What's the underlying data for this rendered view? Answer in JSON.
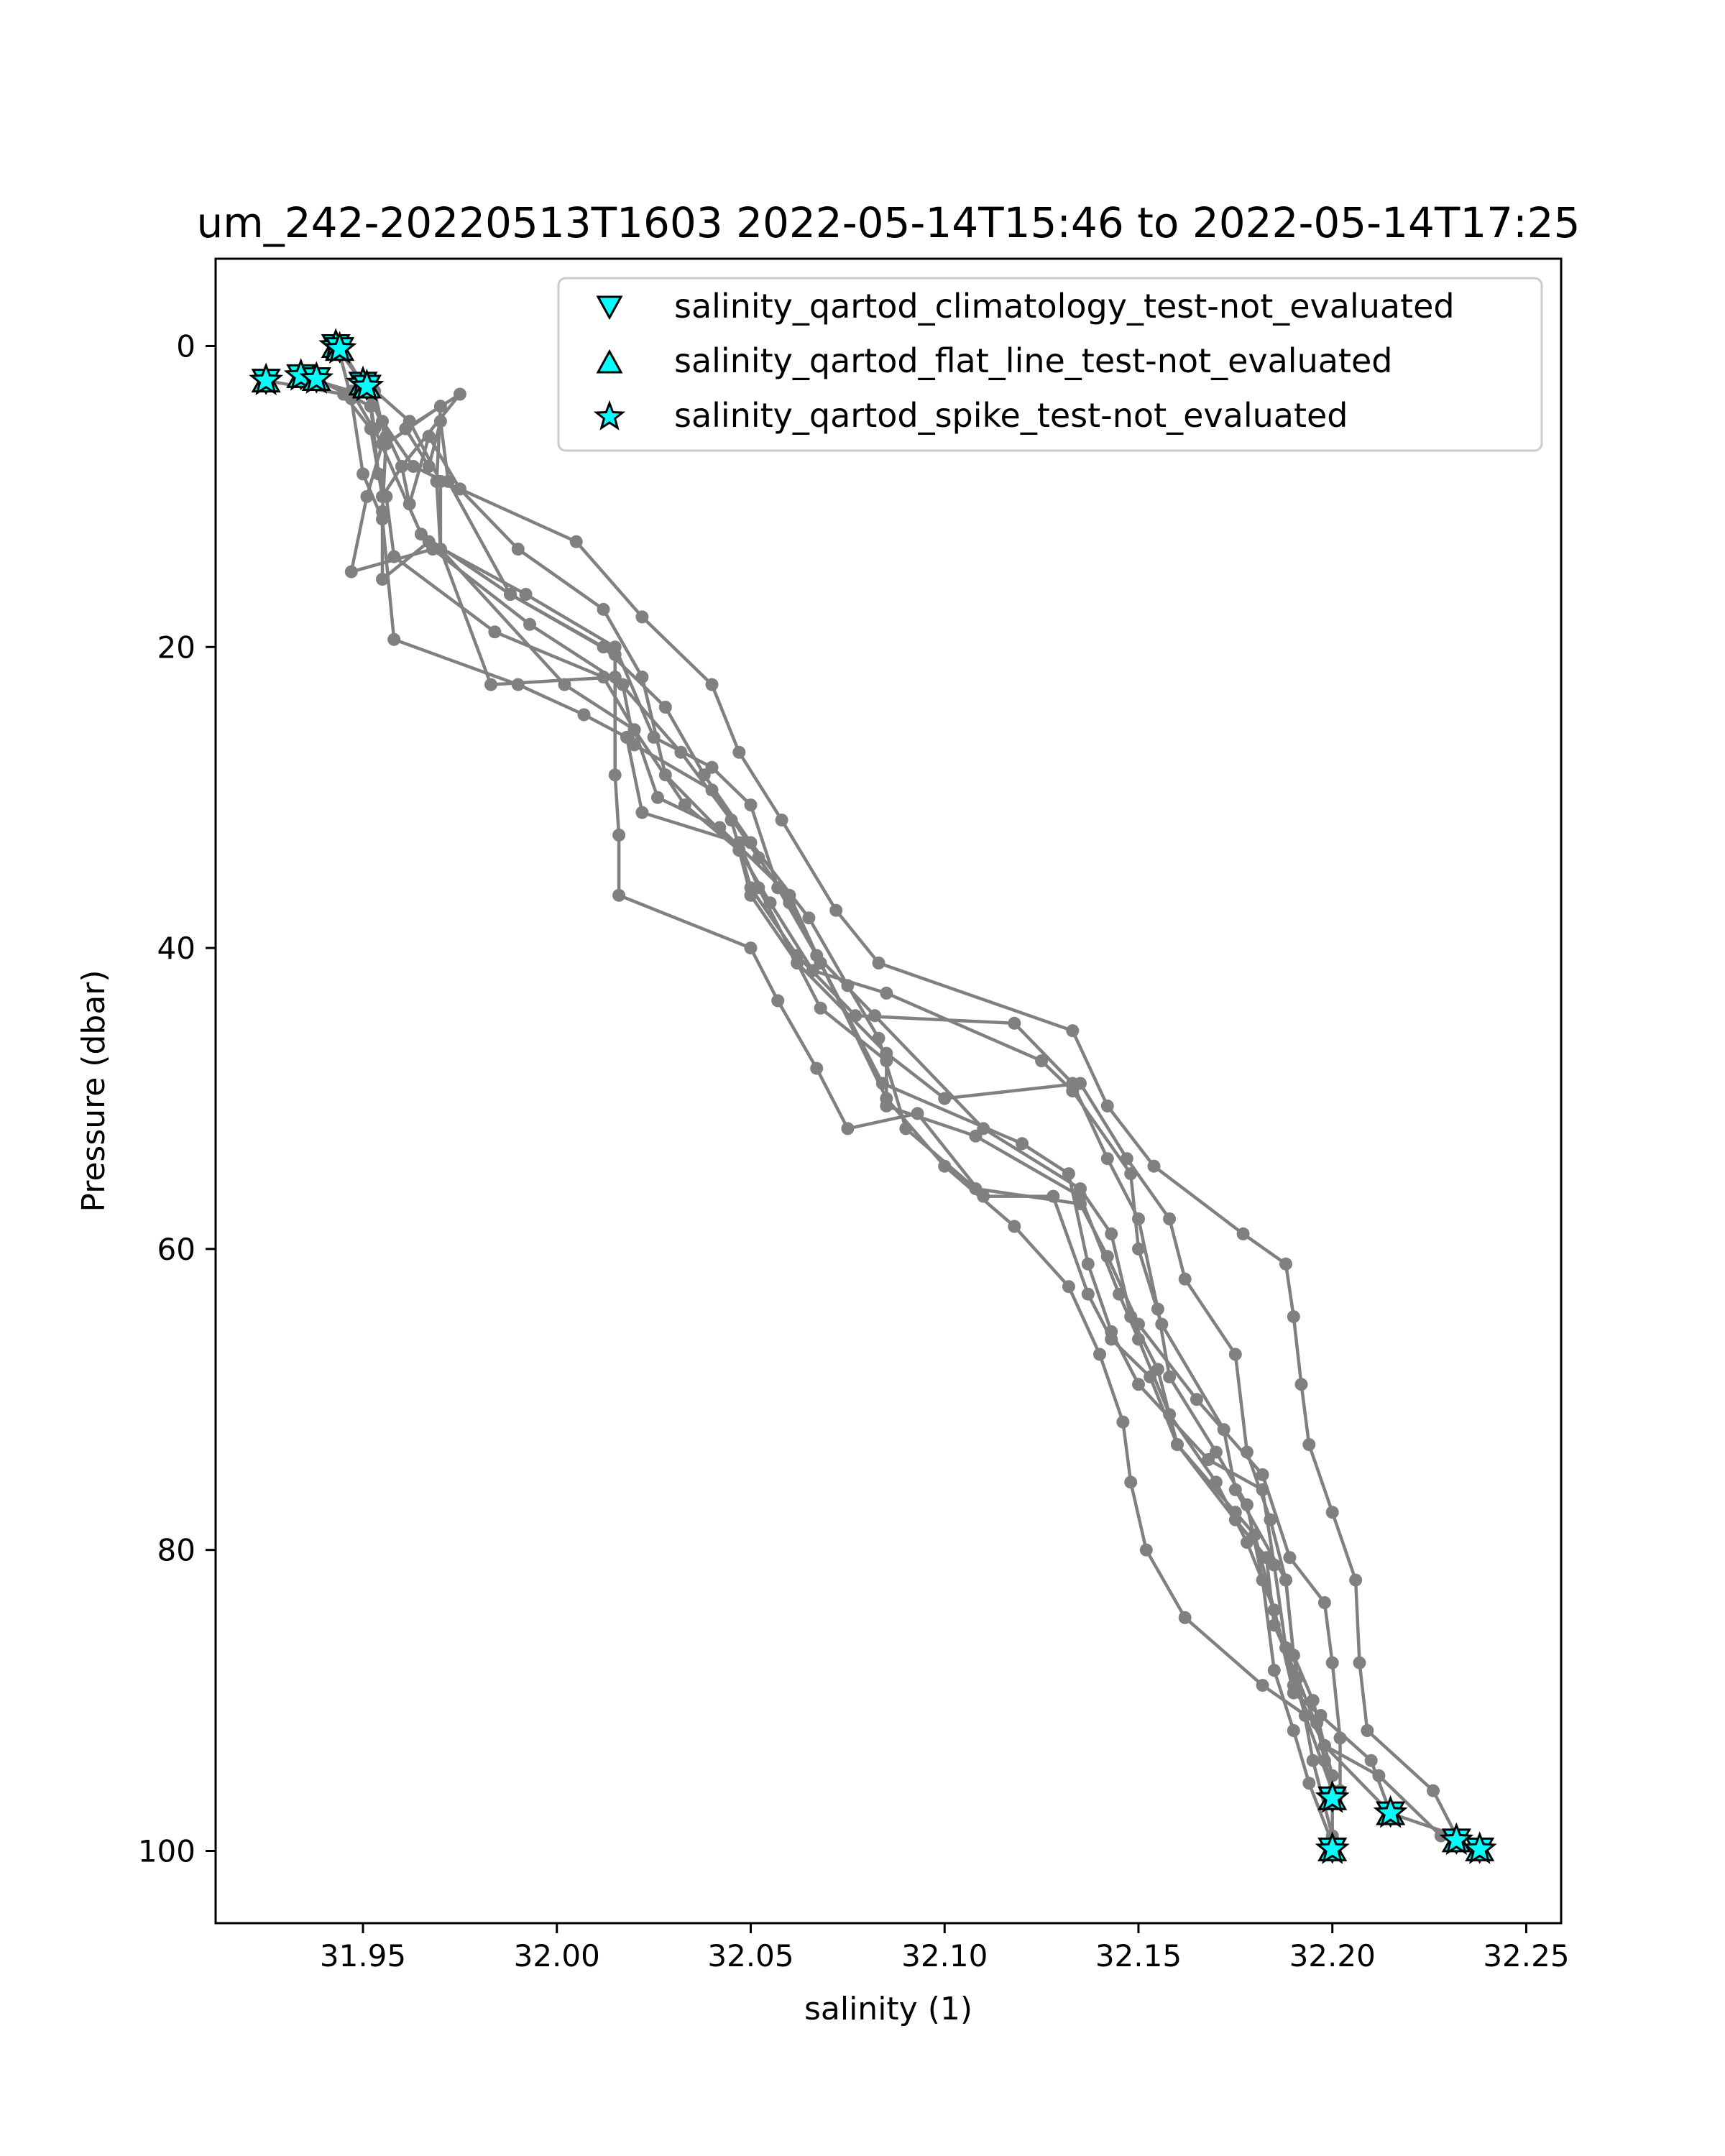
{
  "chart_data": {
    "type": "line",
    "title": "um_242-20220513T1603 2022-05-14T15:46 to 2022-05-14T17:25",
    "xlabel": "salinity (1)",
    "ylabel": "Pressure (dbar)",
    "xlim": [
      31.912,
      32.259
    ],
    "ylim": [
      104.8,
      -5.8
    ],
    "y_inverted": true,
    "grid": false,
    "x_ticks": [
      31.95,
      32.0,
      32.05,
      32.1,
      32.15,
      32.2,
      32.25
    ],
    "x_tick_labels": [
      "31.95",
      "32.00",
      "32.05",
      "32.10",
      "32.15",
      "32.20",
      "32.25"
    ],
    "y_ticks": [
      0,
      20,
      40,
      60,
      80,
      100
    ],
    "y_tick_labels": [
      "0",
      "20",
      "40",
      "60",
      "80",
      "100"
    ],
    "legend_position": "top-right",
    "line_color": "#808080",
    "flag_color": "#00ffff",
    "legend": [
      {
        "label": "salinity_qartod_climatology_test-not_evaluated",
        "marker": "triangle-down"
      },
      {
        "label": "salinity_qartod_flat_line_test-not_evaluated",
        "marker": "triangle-up"
      },
      {
        "label": "salinity_qartod_spike_test-not_evaluated",
        "marker": "star"
      }
    ],
    "series": [
      {
        "points": [
          [
            31.943,
            0.0
          ],
          [
            31.95,
            2.5
          ],
          [
            31.955,
            5.0
          ],
          [
            31.963,
            8.0
          ],
          [
            31.975,
            9.5
          ],
          [
            32.005,
            13.0
          ],
          [
            32.022,
            18.0
          ],
          [
            32.04,
            22.5
          ],
          [
            32.047,
            27.0
          ],
          [
            32.058,
            31.5
          ],
          [
            32.072,
            37.5
          ],
          [
            32.083,
            41.0
          ],
          [
            32.133,
            45.5
          ],
          [
            32.142,
            50.5
          ],
          [
            32.154,
            54.5
          ],
          [
            32.177,
            59.0
          ],
          [
            32.188,
            61.0
          ],
          [
            32.19,
            64.5
          ],
          [
            32.192,
            69.0
          ],
          [
            32.194,
            73.0
          ],
          [
            32.2,
            77.5
          ],
          [
            32.206,
            82.0
          ],
          [
            32.207,
            87.5
          ],
          [
            32.209,
            92.0
          ],
          [
            32.226,
            96.0
          ],
          [
            32.232,
            99.0
          ]
        ]
      },
      {
        "points": [
          [
            31.951,
            2.5
          ],
          [
            31.953,
            5.5
          ],
          [
            31.965,
            12.5
          ],
          [
            31.988,
            16.5
          ],
          [
            32.012,
            20.0
          ],
          [
            32.028,
            24.0
          ],
          [
            32.038,
            28.5
          ],
          [
            32.05,
            33.0
          ],
          [
            32.065,
            38.0
          ],
          [
            32.075,
            42.5
          ],
          [
            32.083,
            46.0
          ],
          [
            32.09,
            52.0
          ],
          [
            32.108,
            56.0
          ],
          [
            32.135,
            57.0
          ],
          [
            32.142,
            60.5
          ],
          [
            32.15,
            65.0
          ],
          [
            32.165,
            70.0
          ],
          [
            32.182,
            75.0
          ],
          [
            32.189,
            80.5
          ],
          [
            32.198,
            83.5
          ],
          [
            32.2,
            87.5
          ],
          [
            32.202,
            92.5
          ],
          [
            32.202,
            96.0
          ]
        ]
      },
      {
        "points": [
          [
            31.938,
            2.2
          ],
          [
            31.952,
            4.0
          ],
          [
            31.954,
            8.5
          ],
          [
            31.956,
            10.0
          ],
          [
            31.958,
            14.0
          ],
          [
            31.984,
            19.0
          ],
          [
            32.012,
            22.0
          ],
          [
            32.02,
            25.5
          ],
          [
            32.026,
            30.0
          ],
          [
            32.042,
            32.0
          ],
          [
            32.06,
            36.5
          ],
          [
            32.068,
            41.0
          ],
          [
            32.085,
            50.0
          ],
          [
            32.1,
            54.5
          ],
          [
            32.118,
            58.5
          ],
          [
            32.132,
            62.5
          ],
          [
            32.14,
            67.0
          ],
          [
            32.146,
            71.5
          ],
          [
            32.148,
            75.5
          ],
          [
            32.152,
            80.0
          ],
          [
            32.162,
            84.5
          ],
          [
            32.182,
            89.0
          ],
          [
            32.196,
            91.5
          ],
          [
            32.198,
            94.0
          ],
          [
            32.201,
            96.5
          ]
        ]
      },
      {
        "points": [
          [
            31.934,
            2.0
          ],
          [
            31.947,
            3.0
          ],
          [
            31.955,
            6.5
          ],
          [
            31.951,
            10.0
          ],
          [
            31.947,
            15.0
          ],
          [
            31.968,
            13.5
          ],
          [
            31.993,
            18.5
          ],
          [
            32.017,
            22.5
          ],
          [
            32.02,
            26.5
          ],
          [
            32.04,
            29.5
          ],
          [
            32.052,
            34.0
          ],
          [
            32.06,
            37.0
          ],
          [
            32.068,
            41.0
          ],
          [
            32.084,
            49.0
          ],
          [
            32.12,
            53.0
          ],
          [
            32.132,
            55.0
          ],
          [
            32.137,
            61.0
          ],
          [
            32.143,
            65.5
          ],
          [
            32.15,
            69.0
          ],
          [
            32.168,
            74.0
          ],
          [
            32.182,
            76.0
          ],
          [
            32.185,
            81.0
          ],
          [
            32.188,
            86.5
          ],
          [
            32.193,
            91.0
          ],
          [
            32.2,
            96.0
          ],
          [
            32.2,
            100.0
          ]
        ]
      },
      {
        "points": [
          [
            31.951,
            2.5
          ],
          [
            31.956,
            6.0
          ],
          [
            31.955,
            11.0
          ],
          [
            31.955,
            15.5
          ],
          [
            31.967,
            13.0
          ],
          [
            31.992,
            16.5
          ],
          [
            32.015,
            20.0
          ],
          [
            32.025,
            26.0
          ],
          [
            32.04,
            28.0
          ],
          [
            32.05,
            30.5
          ],
          [
            32.057,
            36.0
          ],
          [
            32.067,
            40.5
          ],
          [
            32.082,
            44.5
          ],
          [
            32.11,
            52.0
          ],
          [
            32.135,
            56.0
          ],
          [
            32.143,
            59.0
          ],
          [
            32.148,
            64.5
          ],
          [
            32.155,
            68.0
          ],
          [
            32.16,
            73.0
          ],
          [
            32.175,
            78.0
          ],
          [
            32.183,
            80.5
          ],
          [
            32.185,
            85.0
          ],
          [
            32.191,
            88.5
          ],
          [
            32.198,
            93.0
          ],
          [
            32.215,
            97.5
          ]
        ]
      },
      {
        "points": [
          [
            31.944,
            0.5
          ],
          [
            31.947,
            3.5
          ],
          [
            31.95,
            8.5
          ],
          [
            31.955,
            11.5
          ],
          [
            31.958,
            19.5
          ],
          [
            31.99,
            22.5
          ],
          [
            32.007,
            24.5
          ],
          [
            32.018,
            26.0
          ],
          [
            32.022,
            31.0
          ],
          [
            32.047,
            33.0
          ],
          [
            32.052,
            36.0
          ],
          [
            32.062,
            41.0
          ],
          [
            32.085,
            47.0
          ],
          [
            32.1,
            50.0
          ],
          [
            32.135,
            49.0
          ],
          [
            32.147,
            54.0
          ],
          [
            32.158,
            58.0
          ],
          [
            32.162,
            62.0
          ],
          [
            32.175,
            67.0
          ],
          [
            32.178,
            73.5
          ],
          [
            32.184,
            78.0
          ],
          [
            32.188,
            82.0
          ],
          [
            32.19,
            87.0
          ],
          [
            32.195,
            94.0
          ],
          [
            32.2,
            99.0
          ]
        ]
      },
      {
        "points": [
          [
            31.951,
            2.5
          ],
          [
            31.962,
            5.0
          ],
          [
            31.97,
            9.0
          ],
          [
            31.97,
            13.5
          ],
          [
            31.983,
            22.5
          ],
          [
            32.015,
            22.0
          ],
          [
            32.032,
            27.0
          ],
          [
            32.045,
            31.5
          ],
          [
            32.05,
            36.0
          ],
          [
            32.062,
            40.5
          ],
          [
            32.077,
            44.5
          ],
          [
            32.118,
            45.0
          ],
          [
            32.133,
            49.0
          ],
          [
            32.142,
            54.0
          ],
          [
            32.15,
            58.0
          ],
          [
            32.155,
            64.0
          ],
          [
            32.158,
            68.5
          ],
          [
            32.17,
            73.5
          ],
          [
            32.178,
            77.0
          ],
          [
            32.182,
            82.0
          ],
          [
            32.185,
            88.0
          ],
          [
            32.19,
            92.0
          ],
          [
            32.194,
            95.5
          ],
          [
            32.2,
            99.5
          ]
        ]
      },
      {
        "points": [
          [
            31.953,
            3.0
          ],
          [
            31.956,
            6.5
          ],
          [
            31.97,
            4.0
          ],
          [
            31.969,
            9.0
          ],
          [
            31.97,
            13.5
          ],
          [
            32.002,
            22.5
          ],
          [
            32.02,
            25.5
          ],
          [
            32.033,
            30.5
          ],
          [
            32.047,
            33.5
          ],
          [
            32.055,
            37.0
          ],
          [
            32.066,
            41.5
          ],
          [
            32.085,
            43.0
          ],
          [
            32.125,
            47.5
          ],
          [
            32.133,
            49.5
          ],
          [
            32.148,
            55.0
          ],
          [
            32.15,
            60.0
          ],
          [
            32.156,
            65.0
          ],
          [
            32.172,
            72.0
          ],
          [
            32.175,
            76.0
          ],
          [
            32.188,
            82.0
          ],
          [
            32.19,
            87.0
          ],
          [
            32.195,
            90.0
          ],
          [
            32.2,
            95.0
          ]
        ]
      },
      {
        "points": [
          [
            31.944,
            0.0
          ],
          [
            31.951,
            3.0
          ],
          [
            31.96,
            8.0
          ],
          [
            31.975,
            3.2
          ],
          [
            31.961,
            5.5
          ],
          [
            31.967,
            8.0
          ],
          [
            31.97,
            5.0
          ],
          [
            31.972,
            9.0
          ],
          [
            31.988,
            16.5
          ],
          [
            32.015,
            20.5
          ],
          [
            32.015,
            28.5
          ],
          [
            32.016,
            32.5
          ],
          [
            32.016,
            36.5
          ],
          [
            32.05,
            40.0
          ],
          [
            32.057,
            43.5
          ],
          [
            32.067,
            48.0
          ],
          [
            32.075,
            52.0
          ],
          [
            32.093,
            51.0
          ],
          [
            32.11,
            56.5
          ],
          [
            32.128,
            56.5
          ],
          [
            32.137,
            63.0
          ],
          [
            32.143,
            66.0
          ],
          [
            32.153,
            68.5
          ],
          [
            32.16,
            73.0
          ],
          [
            32.175,
            77.5
          ],
          [
            32.18,
            79.0
          ],
          [
            32.185,
            84.0
          ],
          [
            32.19,
            89.0
          ],
          [
            32.198,
            93.0
          ],
          [
            32.212,
            95.0
          ],
          [
            32.228,
            99.0
          ],
          [
            32.238,
            100.0
          ]
        ]
      },
      {
        "points": [
          [
            31.925,
            2.3
          ],
          [
            31.945,
            3.2
          ],
          [
            31.952,
            5.5
          ],
          [
            31.955,
            10.0
          ],
          [
            31.96,
            8.0
          ],
          [
            31.962,
            10.5
          ],
          [
            31.967,
            6.0
          ],
          [
            31.975,
            9.5
          ],
          [
            31.99,
            13.5
          ],
          [
            32.012,
            17.5
          ],
          [
            32.022,
            22.0
          ],
          [
            32.028,
            28.5
          ],
          [
            32.047,
            33.5
          ],
          [
            32.05,
            36.5
          ],
          [
            32.062,
            41.0
          ],
          [
            32.068,
            44.0
          ],
          [
            32.085,
            47.5
          ],
          [
            32.085,
            50.5
          ],
          [
            32.108,
            52.5
          ],
          [
            32.135,
            56.5
          ],
          [
            32.145,
            63.0
          ],
          [
            32.15,
            66.0
          ],
          [
            32.158,
            71.0
          ],
          [
            32.17,
            75.5
          ],
          [
            32.178,
            79.5
          ],
          [
            32.185,
            84.0
          ],
          [
            32.19,
            89.5
          ],
          [
            32.197,
            91.0
          ],
          [
            32.21,
            94.0
          ],
          [
            32.215,
            97.5
          ],
          [
            32.232,
            99.0
          ]
        ]
      }
    ],
    "flags": {
      "points": [
        [
          31.943,
          0.0
        ],
        [
          31.944,
          0.2
        ],
        [
          31.925,
          2.3
        ],
        [
          31.934,
          2.0
        ],
        [
          31.938,
          2.2
        ],
        [
          31.95,
          2.5
        ],
        [
          31.951,
          2.7
        ],
        [
          32.2,
          96.5
        ],
        [
          32.2,
          99.9
        ],
        [
          32.215,
          97.5
        ],
        [
          32.232,
          99.3
        ],
        [
          32.238,
          99.9
        ]
      ]
    }
  }
}
